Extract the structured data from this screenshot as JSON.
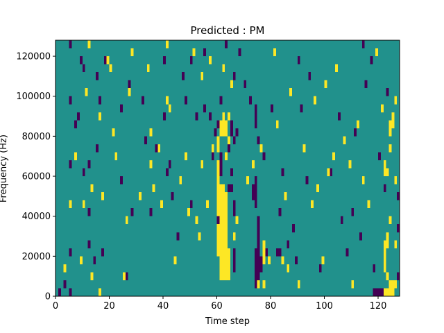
{
  "chart_data": {
    "type": "heatmap",
    "title": "Predicted : PM",
    "xlabel": "Time step",
    "ylabel": "Frequency (Hz)",
    "xlim": [
      0,
      128
    ],
    "ylim": [
      0,
      128000
    ],
    "xticks": [
      0,
      20,
      40,
      60,
      80,
      100,
      120
    ],
    "yticks": [
      0,
      20000,
      40000,
      60000,
      80000,
      100000,
      120000
    ],
    "ytick_labels": [
      "0",
      "20000",
      "40000",
      "60000",
      "80000",
      "100000",
      "120000"
    ],
    "grid": false,
    "n_time_steps": 128,
    "n_freq_bins": 32,
    "bin_height_hz": 4000,
    "colormap": {
      "0": "#440154",
      "1": "#21918c",
      "2": "#fde725"
    },
    "background_value": 1,
    "cells": [
      [
        1,
        0,
        0
      ],
      [
        3,
        1,
        0
      ],
      [
        3,
        3,
        2
      ],
      [
        5,
        0,
        0
      ],
      [
        5,
        5,
        0
      ],
      [
        5,
        11,
        2
      ],
      [
        5,
        16,
        0
      ],
      [
        5,
        24,
        0
      ],
      [
        5,
        31,
        0
      ],
      [
        7,
        17,
        2
      ],
      [
        7,
        21,
        0
      ],
      [
        8,
        22,
        0
      ],
      [
        9,
        29,
        0
      ],
      [
        9,
        4,
        2
      ],
      [
        10,
        11,
        2
      ],
      [
        10,
        15,
        0
      ],
      [
        11,
        25,
        2
      ],
      [
        12,
        10,
        0
      ],
      [
        10,
        28,
        0
      ],
      [
        12,
        31,
        2
      ],
      [
        12,
        6,
        0
      ],
      [
        12,
        16,
        0
      ],
      [
        13,
        2,
        2
      ],
      [
        13,
        13,
        2
      ],
      [
        14,
        4,
        0
      ],
      [
        15,
        18,
        0
      ],
      [
        16,
        0,
        2
      ],
      [
        16,
        22,
        2
      ],
      [
        16,
        24,
        0
      ],
      [
        17,
        12,
        2
      ],
      [
        17,
        5,
        0
      ],
      [
        15,
        27,
        0
      ],
      [
        18,
        29,
        0
      ],
      [
        19,
        29,
        2
      ],
      [
        20,
        28,
        2
      ],
      [
        21,
        20,
        2
      ],
      [
        22,
        17,
        2
      ],
      [
        24,
        14,
        0
      ],
      [
        24,
        23,
        0
      ],
      [
        25,
        2,
        2
      ],
      [
        26,
        2,
        0
      ],
      [
        26,
        9,
        2
      ],
      [
        27,
        26,
        0
      ],
      [
        27,
        25,
        2
      ],
      [
        28,
        10,
        0
      ],
      [
        28,
        30,
        2
      ],
      [
        31,
        12,
        2
      ],
      [
        32,
        24,
        0
      ],
      [
        33,
        19,
        0
      ],
      [
        34,
        28,
        2
      ],
      [
        35,
        16,
        2
      ],
      [
        35,
        10,
        0
      ],
      [
        35,
        20,
        2
      ],
      [
        36,
        13,
        2
      ],
      [
        37,
        18,
        0
      ],
      [
        38,
        18,
        2
      ],
      [
        39,
        11,
        2
      ],
      [
        40,
        22,
        0
      ],
      [
        40,
        29,
        0
      ],
      [
        41,
        31,
        2
      ],
      [
        41,
        15,
        0
      ],
      [
        41,
        24,
        2
      ],
      [
        42,
        23,
        2
      ],
      [
        42,
        16,
        0
      ],
      [
        43,
        12,
        0
      ],
      [
        44,
        4,
        2
      ],
      [
        45,
        7,
        0
      ],
      [
        46,
        14,
        2
      ],
      [
        47,
        27,
        0
      ],
      [
        48,
        17,
        2
      ],
      [
        48,
        24,
        0
      ],
      [
        49,
        10,
        2
      ],
      [
        50,
        11,
        0
      ],
      [
        50,
        29,
        0
      ],
      [
        51,
        30,
        2
      ],
      [
        52,
        22,
        0
      ],
      [
        52,
        9,
        2
      ],
      [
        53,
        7,
        2
      ],
      [
        54,
        27,
        2
      ],
      [
        54,
        16,
        2
      ],
      [
        55,
        30,
        0
      ],
      [
        55,
        23,
        0
      ],
      [
        56,
        11,
        2
      ],
      [
        57,
        22,
        0
      ],
      [
        57,
        29,
        2
      ],
      [
        58,
        17,
        0
      ],
      [
        58,
        18,
        2
      ],
      [
        59,
        20,
        0
      ],
      [
        60,
        21,
        0
      ],
      [
        61,
        24,
        0
      ],
      [
        62,
        28,
        2
      ],
      [
        63,
        31,
        0
      ],
      [
        63,
        17,
        2
      ],
      [
        64,
        18,
        0
      ],
      [
        64,
        22,
        2
      ],
      [
        65,
        15,
        0
      ],
      [
        65,
        26,
        2
      ],
      [
        66,
        27,
        0
      ],
      [
        67,
        20,
        0
      ],
      [
        67,
        9,
        2
      ],
      [
        68,
        30,
        0
      ],
      [
        70,
        26,
        0
      ],
      [
        71,
        14,
        2
      ],
      [
        72,
        24,
        0
      ],
      [
        73,
        16,
        2
      ],
      [
        74,
        2,
        0
      ],
      [
        75,
        19,
        0
      ],
      [
        75,
        1,
        2
      ],
      [
        76,
        18,
        2
      ],
      [
        77,
        17,
        0
      ],
      [
        78,
        5,
        0
      ],
      [
        79,
        4,
        2
      ],
      [
        80,
        23,
        0
      ],
      [
        81,
        30,
        2
      ],
      [
        82,
        21,
        2
      ],
      [
        83,
        10,
        0
      ],
      [
        84,
        15,
        0
      ],
      [
        85,
        12,
        2
      ],
      [
        86,
        3,
        2
      ],
      [
        86,
        6,
        0
      ],
      [
        87,
        25,
        2
      ],
      [
        88,
        8,
        0
      ],
      [
        89,
        4,
        0
      ],
      [
        90,
        1,
        2
      ],
      [
        90,
        29,
        0
      ],
      [
        91,
        23,
        0
      ],
      [
        92,
        18,
        2
      ],
      [
        93,
        14,
        0
      ],
      [
        94,
        27,
        0
      ],
      [
        95,
        11,
        2
      ],
      [
        96,
        24,
        2
      ],
      [
        97,
        13,
        2
      ],
      [
        98,
        3,
        0
      ],
      [
        99,
        4,
        2
      ],
      [
        100,
        26,
        2
      ],
      [
        101,
        15,
        2
      ],
      [
        102,
        15,
        0
      ],
      [
        103,
        17,
        2
      ],
      [
        104,
        28,
        2
      ],
      [
        105,
        22,
        0
      ],
      [
        106,
        9,
        0
      ],
      [
        107,
        19,
        2
      ],
      [
        108,
        5,
        0
      ],
      [
        109,
        16,
        2
      ],
      [
        110,
        10,
        0
      ],
      [
        110,
        1,
        2
      ],
      [
        111,
        20,
        0
      ],
      [
        112,
        21,
        2
      ],
      [
        113,
        7,
        0
      ],
      [
        114,
        14,
        2
      ],
      [
        114,
        31,
        0
      ],
      [
        115,
        26,
        0
      ],
      [
        116,
        11,
        2
      ],
      [
        117,
        29,
        0
      ],
      [
        118,
        3,
        0
      ],
      [
        119,
        30,
        2
      ],
      [
        120,
        17,
        0
      ],
      [
        121,
        23,
        2
      ],
      [
        122,
        13,
        0
      ],
      [
        123,
        25,
        0
      ],
      [
        124,
        18,
        2
      ],
      [
        125,
        21,
        0
      ],
      [
        126,
        14,
        2
      ],
      [
        127,
        12,
        0
      ],
      [
        127,
        2,
        0
      ],
      [
        126,
        6,
        2
      ],
      [
        127,
        8,
        0
      ],
      [
        118,
        0,
        0
      ],
      [
        119,
        0,
        0
      ],
      [
        120,
        0,
        0
      ],
      [
        121,
        0,
        0
      ],
      [
        122,
        0,
        2
      ],
      [
        123,
        0,
        2
      ],
      [
        124,
        0,
        2
      ],
      [
        125,
        0,
        2
      ],
      [
        126,
        1,
        2
      ],
      [
        124,
        1,
        2
      ],
      [
        125,
        1,
        2
      ],
      [
        122,
        5,
        2
      ],
      [
        122,
        6,
        2
      ],
      [
        123,
        6,
        2
      ],
      [
        123,
        7,
        2
      ],
      [
        124,
        9,
        2
      ],
      [
        122,
        15,
        2
      ],
      [
        123,
        15,
        2
      ],
      [
        122,
        16,
        2
      ],
      [
        124,
        18,
        2
      ],
      [
        123,
        2,
        2
      ],
      [
        122,
        3,
        2
      ],
      [
        122,
        4,
        2
      ],
      [
        124,
        20,
        2
      ],
      [
        124,
        21,
        2
      ],
      [
        125,
        21,
        2
      ],
      [
        125,
        22,
        2
      ],
      [
        126,
        24,
        2
      ]
    ],
    "bands": [
      {
        "x0": 60,
        "x1": 61,
        "b0": 5,
        "b1": 17,
        "v": 2
      },
      {
        "x0": 61,
        "x1": 62,
        "b0": 2,
        "b1": 14,
        "v": 2
      },
      {
        "x0": 62,
        "x1": 63,
        "b0": 2,
        "b1": 14,
        "v": 2
      },
      {
        "x0": 63,
        "x1": 64,
        "b0": 2,
        "b1": 13,
        "v": 2
      },
      {
        "x0": 64,
        "x1": 65,
        "b0": 2,
        "b1": 6,
        "v": 2
      },
      {
        "x0": 61,
        "x1": 62,
        "b0": 15,
        "b1": 18,
        "v": 0
      },
      {
        "x0": 60,
        "x1": 61,
        "b0": 18,
        "b1": 20,
        "v": 2
      },
      {
        "x0": 61,
        "x1": 62,
        "b0": 20,
        "b1": 22,
        "v": 2
      },
      {
        "x0": 62,
        "x1": 63,
        "b0": 20,
        "b1": 23,
        "v": 2
      },
      {
        "x0": 63,
        "x1": 64,
        "b0": 20,
        "b1": 22,
        "v": 2
      },
      {
        "x0": 64,
        "x1": 65,
        "b0": 19,
        "b1": 20,
        "v": 2
      },
      {
        "x0": 65,
        "x1": 66,
        "b0": 20,
        "b1": 22,
        "v": 0
      },
      {
        "x0": 66,
        "x1": 67,
        "b0": 19,
        "b1": 20,
        "v": 0
      },
      {
        "x0": 66,
        "x1": 67,
        "b0": 10,
        "b1": 12,
        "v": 0
      },
      {
        "x0": 64,
        "x1": 66,
        "b0": 13,
        "b1": 14,
        "v": 0
      },
      {
        "x0": 66,
        "x1": 67,
        "b0": 3,
        "b1": 6,
        "v": 0
      },
      {
        "x0": 66,
        "x1": 67,
        "b0": 7,
        "b1": 8,
        "v": 2
      },
      {
        "x0": 74,
        "x1": 75,
        "b0": 1,
        "b1": 6,
        "v": 0
      },
      {
        "x0": 75,
        "x1": 76,
        "b0": 2,
        "b1": 10,
        "v": 0
      },
      {
        "x0": 74,
        "x1": 75,
        "b0": 11,
        "b1": 15,
        "v": 0
      },
      {
        "x0": 76,
        "x1": 77,
        "b0": 3,
        "b1": 5,
        "v": 0
      },
      {
        "x0": 77,
        "x1": 78,
        "b0": 4,
        "b1": 7,
        "v": 2
      },
      {
        "x0": 77,
        "x1": 78,
        "b0": 1,
        "b1": 2,
        "v": 2
      },
      {
        "x0": 73,
        "x1": 74,
        "b0": 12,
        "b1": 14,
        "v": 0
      },
      {
        "x0": 74,
        "x1": 75,
        "b0": 21,
        "b1": 24,
        "v": 0
      },
      {
        "x0": 60,
        "x1": 61,
        "b0": 9,
        "b1": 10,
        "v": 0
      },
      {
        "x0": 82,
        "x1": 84,
        "b0": 5,
        "b1": 6,
        "v": 0
      },
      {
        "x0": 84,
        "x1": 85,
        "b0": 4,
        "b1": 5,
        "v": 2
      }
    ]
  }
}
